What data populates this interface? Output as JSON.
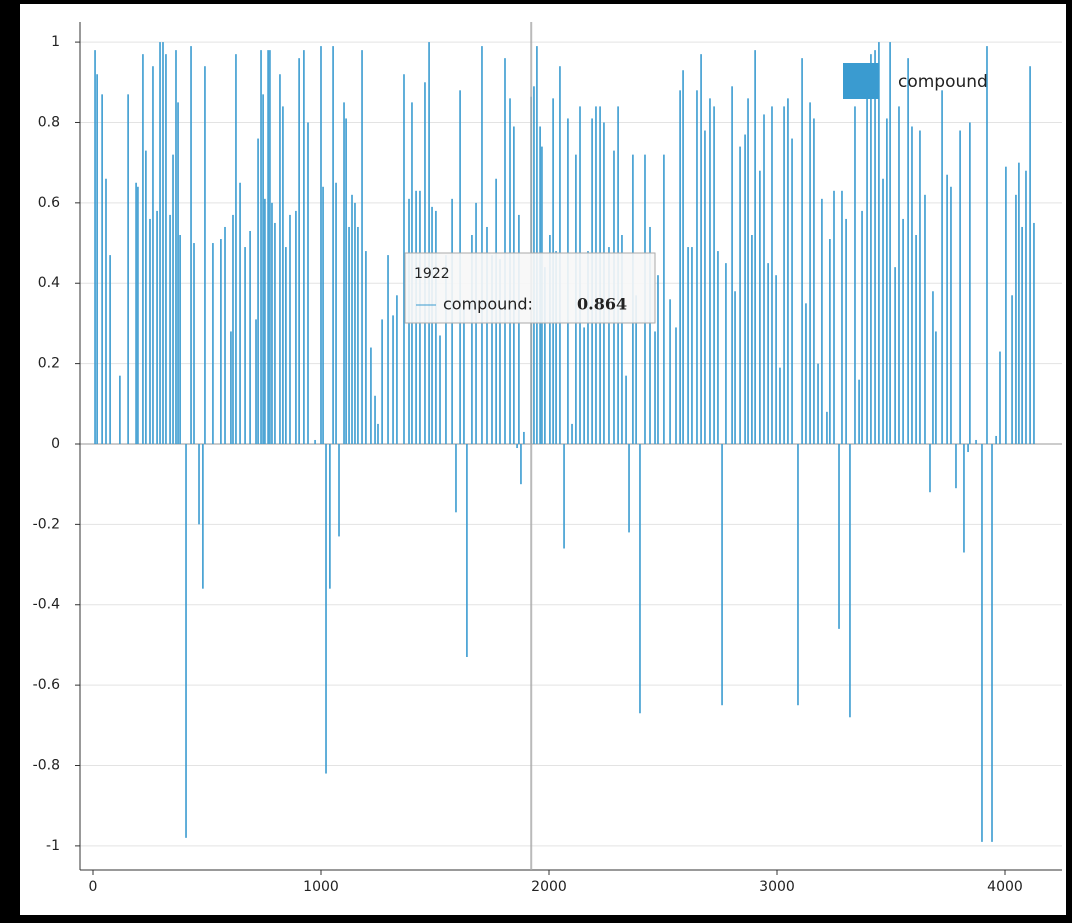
{
  "chart_data": {
    "type": "bar",
    "series": [
      {
        "name": "compound",
        "color": "#3a9bd0",
        "x": [
          9,
          18,
          40,
          57,
          75,
          118,
          154,
          189,
          197,
          219,
          232,
          250,
          263,
          281,
          294,
          307,
          320,
          338,
          351,
          364,
          373,
          382,
          408,
          430,
          443,
          465,
          482,
          491,
          526,
          561,
          579,
          605,
          614,
          627,
          645,
          667,
          689,
          715,
          724,
          737,
          746,
          754,
          768,
          776,
          785,
          798,
          820,
          833,
          846,
          864,
          890,
          904,
          925,
          943,
          974,
          1000,
          1009,
          1022,
          1039,
          1053,
          1066,
          1079,
          1101,
          1110,
          1123,
          1136,
          1149,
          1162,
          1180,
          1197,
          1219,
          1237,
          1250,
          1268,
          1294,
          1316,
          1333,
          1364,
          1386,
          1399,
          1417,
          1434,
          1456,
          1474,
          1487,
          1504,
          1522,
          1548,
          1575,
          1592,
          1610,
          1627,
          1640,
          1662,
          1680,
          1706,
          1728,
          1750,
          1768,
          1785,
          1807,
          1829,
          1846,
          1860,
          1868,
          1877,
          1890,
          1922,
          1934,
          1947,
          1961,
          1969,
          1982,
          2004,
          2018,
          2031,
          2048,
          2066,
          2083,
          2101,
          2118,
          2136,
          2154,
          2171,
          2189,
          2206,
          2224,
          2241,
          2263,
          2285,
          2303,
          2320,
          2338,
          2351,
          2368,
          2382,
          2399,
          2421,
          2443,
          2465,
          2478,
          2504,
          2531,
          2557,
          2575,
          2588,
          2610,
          2627,
          2649,
          2667,
          2684,
          2706,
          2724,
          2741,
          2759,
          2776,
          2803,
          2816,
          2838,
          2860,
          2873,
          2890,
          2904,
          2925,
          2943,
          2961,
          2978,
          2996,
          3013,
          3031,
          3048,
          3066,
          3092,
          3110,
          3127,
          3145,
          3162,
          3180,
          3197,
          3219,
          3232,
          3250,
          3272,
          3285,
          3303,
          3320,
          3342,
          3360,
          3373,
          3395,
          3412,
          3430,
          3447,
          3465,
          3482,
          3496,
          3518,
          3535,
          3553,
          3575,
          3592,
          3610,
          3627,
          3649,
          3671,
          3684,
          3697,
          3724,
          3746,
          3763,
          3785,
          3803,
          3820,
          3838,
          3846,
          3873,
          3899,
          3921,
          3943,
          3961,
          3978,
          4004,
          4031,
          4048,
          4061,
          4075,
          4092,
          4110,
          4127
        ],
        "values": [
          0.98,
          0.92,
          0.87,
          0.66,
          0.47,
          0.17,
          0.87,
          0.65,
          0.64,
          0.97,
          0.73,
          0.56,
          0.94,
          0.58,
          1.0,
          1.0,
          0.97,
          0.57,
          0.72,
          0.98,
          0.85,
          0.52,
          -0.98,
          0.99,
          0.5,
          -0.2,
          -0.36,
          0.94,
          0.5,
          0.51,
          0.54,
          0.28,
          0.57,
          0.97,
          0.65,
          0.49,
          0.53,
          0.31,
          0.76,
          0.98,
          0.87,
          0.61,
          0.98,
          0.98,
          0.6,
          0.55,
          0.92,
          0.84,
          0.49,
          0.57,
          0.58,
          0.96,
          0.98,
          0.8,
          0.01,
          0.99,
          0.64,
          -0.82,
          -0.36,
          0.99,
          0.65,
          -0.23,
          0.85,
          0.81,
          0.54,
          0.62,
          0.6,
          0.54,
          0.98,
          0.48,
          0.24,
          0.12,
          0.05,
          0.31,
          0.47,
          0.32,
          0.37,
          0.92,
          0.61,
          0.85,
          0.63,
          0.63,
          0.9,
          1.0,
          0.59,
          0.58,
          0.27,
          0.47,
          0.61,
          -0.17,
          0.88,
          0.35,
          -0.53,
          0.52,
          0.6,
          0.99,
          0.54,
          0.47,
          0.66,
          0.46,
          0.96,
          0.86,
          0.79,
          -0.01,
          0.57,
          -0.1,
          0.03,
          0.864,
          0.89,
          0.99,
          0.79,
          0.74,
          0.44,
          0.52,
          0.86,
          0.48,
          0.94,
          -0.26,
          0.81,
          0.05,
          0.72,
          0.84,
          0.29,
          0.48,
          0.81,
          0.84,
          0.84,
          0.8,
          0.49,
          0.73,
          0.84,
          0.52,
          0.17,
          -0.22,
          0.72,
          0.37,
          -0.67,
          0.72,
          0.54,
          0.28,
          0.42,
          0.72,
          0.36,
          0.29,
          0.88,
          0.93,
          0.49,
          0.49,
          0.88,
          0.97,
          0.78,
          0.86,
          0.84,
          0.48,
          -0.65,
          0.45,
          0.89,
          0.38,
          0.74,
          0.77,
          0.86,
          0.52,
          0.98,
          0.68,
          0.82,
          0.45,
          0.84,
          0.42,
          0.19,
          0.84,
          0.86,
          0.76,
          -0.65,
          0.96,
          0.35,
          0.85,
          0.81,
          0.2,
          0.61,
          0.08,
          0.51,
          0.63,
          -0.46,
          0.63,
          0.56,
          -0.68,
          0.84,
          0.16,
          0.58,
          0.91,
          0.97,
          0.98,
          1.0,
          0.66,
          0.81,
          1.0,
          0.44,
          0.84,
          0.56,
          0.96,
          0.79,
          0.52,
          0.78,
          0.62,
          -0.12,
          0.38,
          0.28,
          0.88,
          0.67,
          0.64,
          -0.11,
          0.78,
          -0.27,
          -0.02,
          0.8,
          0.01,
          -0.99,
          0.99,
          -0.99,
          0.02,
          0.23,
          0.69,
          0.37,
          0.62,
          0.7,
          0.54,
          0.68,
          0.94,
          0.55
        ]
      }
    ],
    "xlim": [
      -57,
      4250
    ],
    "xticks": [
      0,
      1000,
      2000,
      3000,
      4000
    ],
    "ylim": [
      -1.06,
      1.05
    ],
    "yticks": [
      -1,
      -0.8,
      -0.6,
      -0.4,
      -0.2,
      0,
      0.2,
      0.4,
      0.6,
      0.8,
      1
    ],
    "grid": true,
    "legend": "top-right",
    "tooltip": {
      "x": 1922,
      "label": "compound:",
      "value": 0.864
    }
  }
}
